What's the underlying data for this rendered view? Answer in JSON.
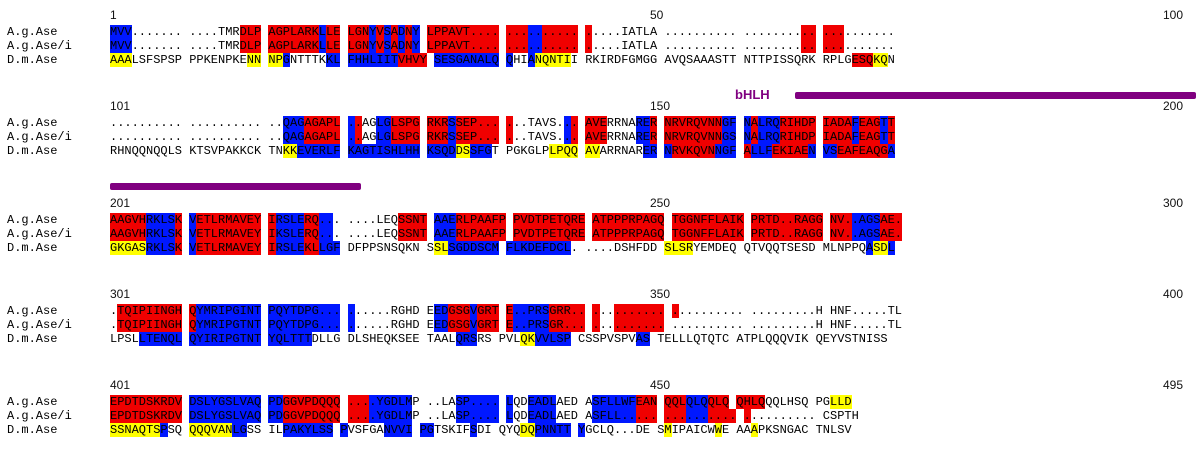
{
  "domain_annotation": {
    "label": "bHLH"
  },
  "colors": {
    "red": "#f00000",
    "blue": "#0018ff",
    "yellow": "#ffff00",
    "bar": "#800080"
  },
  "blocks": [
    {
      "ruler": {
        "start": "1",
        "mid": "50",
        "end": "100"
      },
      "rows": [
        {
          "name": "A.g.Ase",
          "seq": "MVV....... ....TMRDLP AGPLARKLLE LGNYVSADNY LPPAVT.... .......... .....IATLA .......... .......... ..........",
          "hl": "bbbwwwwwwwwwwwwwwrrrrrrrrrrbrrrrrbrbrbrbrrrrrrrrrrrrrbbrrrrrrwwwwwwwwwwwwwwwwwwwwwwwwwwwrrrrrwwwwwwwwwwwwwwwwwwwwwwwwwwwwwwwwwwwwwwwwwwwww"
        },
        {
          "name": "A.g.Ase/i",
          "seq": "MVV....... ....TMRDLP AGPLARKLLE LGNYVSADNY LPPAVT.... .......... .....IATLA .......... .......... ..........",
          "hl": "bbbwwwwwwwwwwwwwwrrrrrrrrrrbrrrrrbrbrbrbrrrrrrrrrrrrrbbrrrrrrwwwwwwwwwwwwwwwwwwwwwwwwwwwrrrrrwwwwwwwwwwwwwwwwwwwwwwwwwwwwwwwwwwwwwwwwwwwww"
        },
        {
          "name": "D.m.Ase",
          "seq": "AAALSFSPSP PPKENPKENN NPGNTTTKKL FHHLIITVHVY SESGANALQ QHIANQNTII RKIRDFGMGG AVQSAAASTT NTTPISSQRK RPLGESQKQN",
          "hl": "yyywwwwwwwwwwwwwwwyyyybwwwwwbbbbbbbbbrrrrbbbbbbbbbbwwbyyyyywwwwwwwwwwwwwwwwwwwwwwwwwwwwwwwwwwwrrryywwwwwwwwwwwwwwwwwwwwwwwwwwwwwwwwwwwwwwwww"
        }
      ]
    },
    {
      "ruler": {
        "start": "101",
        "mid": "150",
        "end": "200"
      },
      "rows": [
        {
          "name": "A.g.Ase",
          "seq": ".......... .......... ..QAGAGAPL ..AGLGLSPG RKRSSEP... ...TAVS... AVERRNARER NRVRQVNNGF NALRQRIHDP IADAFEAGTT",
          "hl": "wwwwwwwwwwwwwwwwwwwwwwbbbrrrrrbrwwbbrrrrrrrbrrrrrrrwwwwwwwbrrrrwwwwbbrrrrrrrrrbbbrbbbrrrrrrrrrbrrrbrrrrrrbbbrrrrrrrrrr"
        },
        {
          "name": "A.g.Ase/i",
          "seq": ".......... .......... ..QAGAGAPL ..AGLGLSPG RKRSSEP... ...TAVS... AVERRNARER NRVRQVNNGS NALRQRIHDP IADAFEAGTT",
          "hl": "wwwwwwwwwwwwwwwwwwwwwwbbbrrrrrbrwwbbrrrrrrrbrrrrrrrwwwwwwwbrrrrwwwwbbrrrrrrrrrbbbrbbbrrrrrrrrrbrrrbrrrrrrbbbrrrrrrrrrr"
        },
        {
          "name": "D.m.Ase",
          "seq": "RHNQQNQQLS KTSVPAKKCK TNKKEVERLF KAGTISHLHH KSQDDSSFGT PGKGLPLPQQ AVARRNARER NRVKQVNNGF ALLFEKIAEN VSEAFEAQGA",
          "hl": "wwwwwwwwwwwwwwwwwwwwwwyybbbbbbbbbbbbbbbbbbbbyybbbwwwwwwwyyyyyywwwwwwbbbrrrrrrbbbrbbbrrrrrbbbrrrrrrrbbrrrrrrrbbbrrrrrrrrrrrr"
        }
      ]
    },
    {
      "ruler": {
        "start": "201",
        "mid": "250",
        "end": "300"
      },
      "rows": [
        {
          "name": "A.g.Ase",
          "seq": "AAGVHRKLSK VETLRMAVEY IRSLERQ... ....LEQSSNT AAERLPAAFP PVDTPETQRE ATPPPRPAGQ TGGNFFLAIK PRTD..RAGG NV..AGSAE.",
          "hl": "rrrrrbbbbrbrrrrrrrrrrbbbbrrbbwwwwwwwwrrrrbbbrrrrrrrrrrrrrrrrrrrrrrrrrrrrrrrrrrrrrrrrrrrrrrrrrrbbbbrrrrrrrrrrrrrrrbbbrrbbbbbbbrrwww"
        },
        {
          "name": "A.g.Ase/i",
          "seq": "AAGVHRKLSK VETLRMAVEY IKSLERQ... ....LEQSSNT AAERLPAAFP PVDTPETQRE ATPPPRPAGQ TGGNFFLAIK PRTD..RAGG NV..AGSAE.",
          "hl": "rrrrrbbbbrbrrrrrrrrrrbbbbrrbbwwwwwwwwrrrrbbbrrrrrrrrrrrrrrrrrrrrrrrrrrrrrrrrrrrrrrrrrrrrrrrrrrbbbbrrrrrrrrrrrrrrrbbbrrbbbbbbbrrwww"
        },
        {
          "name": "D.m.Ase",
          "seq": "GKGASRKLSK VETLRMAVEY IRSLEKLLGF DFPPSNSQKN SSLSGDDSCM FLKDEFDCL. ....DSHFDD SLSRYEMDEQ QTVQQTSESD MLNPPQASDL",
          "hl": "yyyyybbbbrbrrrrrrrrrrbbbbrrbbbwwwwwwwwwwwyybbbbbbbbbbbbbbbbwwwwwwwwwwwyyyywwwwwwwwwwwwwwwwwwwwwwbyybbwwwwwwwwwwwwwwwwwwwwwwwbbbbwwwwwwwwwwwwww"
        }
      ]
    },
    {
      "ruler": {
        "start": "301",
        "mid": "350",
        "end": "400"
      },
      "rows": [
        {
          "name": "A.g.Ase",
          "seq": ".TQIPIINGH QYMRIPGINT PQYTDPG... ......RGHD EEDGSGVGRT E..PRSGRR.. .......... .......... .........H HNF.....TL",
          "hl": "wrrrrrrrrrrbbbbbbbbbbbbbbbbbbbbwwwwwwwwwwbbrrrbrrrrbbbbbrrrrrrwwrrrrrrrrwwwwwwwwwwwwwwwwwwwwwwwwwwwwwwwwwwwwwwwwwwwwwrrrrrwwwwwrr"
        },
        {
          "name": "A.g.Ase/i",
          "seq": ".TQIPIINGH QYMRIPGTNT PQYTDPG... ......RGHD EEDGSGVGRT E..PRSGR... .......... .......... .........H HNF.....TL",
          "hl": "wrrrrrrrrrrbbbbbbbbbbbbbbbbbbbbwwwwwwwwwwbbrrrbrrrrbbbbbrrrrrrwwrrrrrrrwwwwwwwwwwwwwwwwwwwwwwwwwwwwwwwwwwwwwwwwwwwwwwrrrrrwwwwwrr"
        },
        {
          "name": "D.m.Ase",
          "seq": "LPSLLTENQL QYIRIPGTNT YQLTTTDLLG DLSHEQKSEE TAALQRSRS PVLQKVVLSP CSSPVSPVAS TELLLQTQTC ATPLQQQVIK QEYVSTNISS",
          "hl": "wwwwbbbbbbbbbbbbbbbbbbbbbbwwwwwwwwwwwwwwwwwwbbbwwwwwyybbbbbwwwwwwwwbbwwwwwwwwwwwwwwwwwwwwwwwwwwwwwwwwwwwwwwwwwwwwwwwwwwwbbbbbbbwwwwwwbbbb"
        }
      ]
    },
    {
      "ruler": {
        "start": "401",
        "mid": "450",
        "end": "495"
      },
      "rows": [
        {
          "name": "A.g.Ase",
          "seq": "EPDTDSKRDV DSLYGSLVAQ PDGGVPDQQQ ....YGDLMP ..LASP.... LQDEADLAED ASFLLWFEAN QQLQLQQLQ QHLQQQLHSQ PGLLD",
          "hl": "rrrrrrrrrrbbbbbbbbbbbbrrrrrrrrrrrbbbbbbwwwwwbbbbbbbwwbbbbwwwwbbbbbbrrrrrrbbbrrrrrrrwwwwwwwwyyyywwwwwwwwwwwwwwwwwwwwwyyyyy"
        },
        {
          "name": "A.g.Ase/i",
          "seq": "EPDTDSKRDV DSLYGSLVAQ PDGGVPDQQQ ....YGDLMP ..LASP.... LQDEADLAED ASFLL..... .......... .......... CSPTH",
          "hl": "rrrrrrrrrrbbbbbbbbbbbbrrrrrrrrrrrbbbbbbwwwwwbbbbbbbwwbbbbwwwwbbbbbbrrrrrrbbbrrrrrwwwwwwwwwwwwwwwwwwwwwwwwwwwwwwwwwwwwwwyyyy"
        },
        {
          "name": "D.m.Ase",
          "seq": "SSNAQTSPSQ QQQVANLGSS ILPAKYLSS PVSFGANVVI PGTSKIFSDI QYQDQPNNTT YGCLQ...DE SMIPAICWWE AAAPKSNGAC TNLSV",
          "hl": "yyyyyyybwwyyyyyybbwwwwbbbbbbbbwwwwwbbbbbbwwwwwbwwwwwyybbbbbbwwwwwwwwwwywwwwwwywwwywwwwwwwwwwwwwwwwwwwyywwwwwwwwwwwyyywww"
        }
      ]
    }
  ]
}
